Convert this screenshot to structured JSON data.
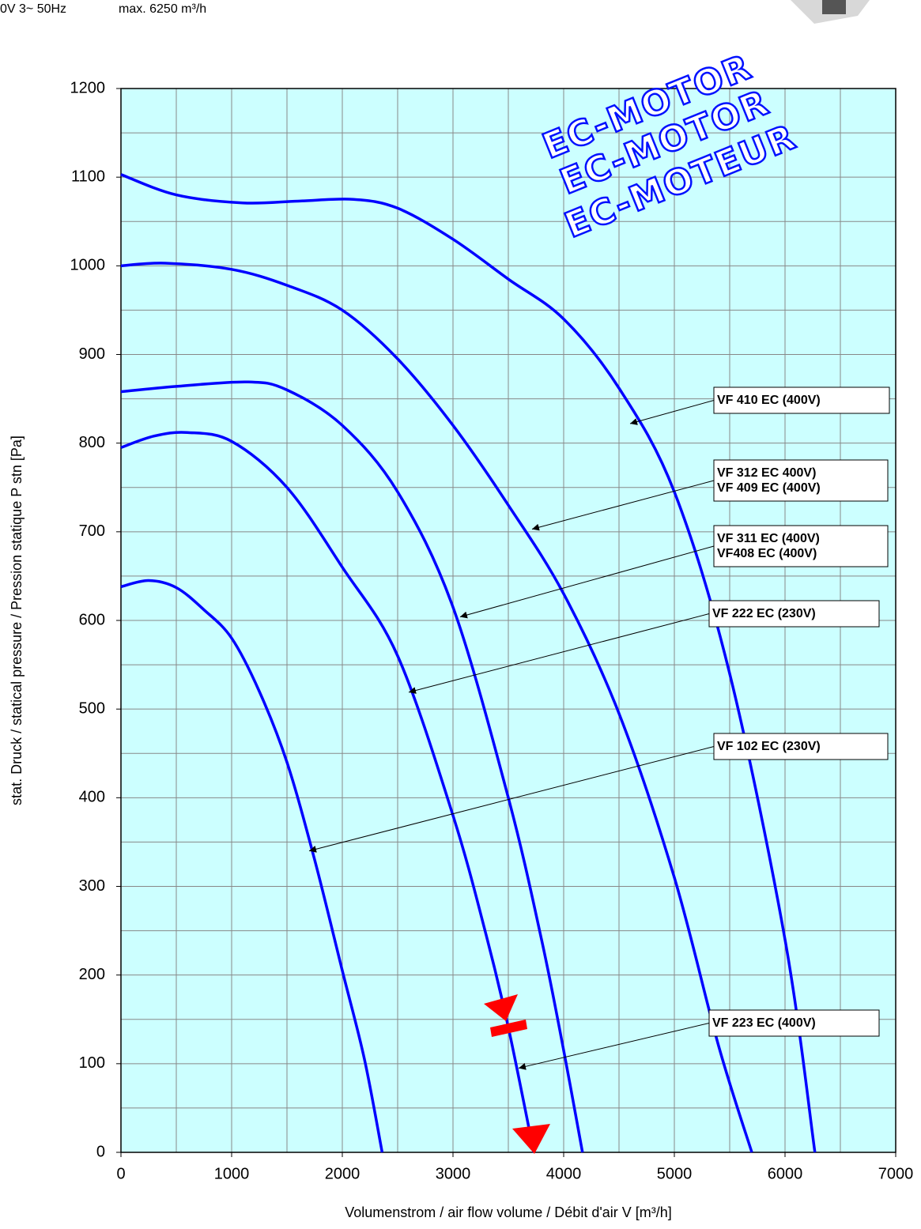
{
  "header": [
    "0V 3~ 50Hz",
    "max. 6250 m³/h"
  ],
  "watermark": [
    "EC-MOTOR",
    "EC-MOTOR",
    "EC-MOTEUR"
  ],
  "chart_data": {
    "type": "line",
    "xlabel": "Volumenstrom / air flow volume / Débit d'air V [m³/h]",
    "ylabel": "stat. Druck / statical pressure / Pression statique P stn [Pa]",
    "xlim": [
      0,
      7000
    ],
    "xticks": [
      0,
      1000,
      2000,
      3000,
      4000,
      5000,
      6000,
      7000
    ],
    "ylim": [
      0,
      1200
    ],
    "yticks": [
      0,
      100,
      200,
      300,
      400,
      500,
      600,
      700,
      800,
      900,
      1000,
      1100,
      1200
    ],
    "x_minor_grid": [
      500,
      1500,
      2500,
      3500,
      4500,
      5500,
      6500
    ],
    "y_minor_grid": [
      50,
      150,
      250,
      350,
      450,
      550,
      650,
      750,
      850,
      950,
      1050,
      1150
    ],
    "grid": true,
    "background": "#ccffff",
    "series": [
      {
        "color": "#0000ff",
        "x": [
          0,
          250,
          500,
          750,
          1000,
          1250,
          1500,
          1750,
          2000,
          2200,
          2360
        ],
        "values": [
          638,
          645,
          637,
          612,
          580,
          520,
          440,
          330,
          205,
          105,
          0
        ]
      },
      {
        "color": "#0000ff",
        "x": [
          0,
          300,
          600,
          1000,
          1500,
          2000,
          2500,
          3000,
          3300,
          3500,
          3730
        ],
        "values": [
          795,
          808,
          812,
          802,
          750,
          660,
          560,
          380,
          245,
          141,
          0
        ]
      },
      {
        "color": "#0000ff",
        "x": [
          0,
          500,
          1150,
          1500,
          2000,
          2500,
          3000,
          3500,
          3800,
          4000,
          4170
        ],
        "values": [
          858,
          864,
          869,
          860,
          820,
          745,
          615,
          400,
          240,
          115,
          0
        ]
      },
      {
        "color": "#0000ff",
        "x": [
          0,
          400,
          1000,
          1500,
          2000,
          2500,
          3000,
          3500,
          4000,
          4500,
          5000,
          5400,
          5700
        ],
        "values": [
          1000,
          1003,
          996,
          978,
          950,
          895,
          820,
          730,
          630,
          495,
          310,
          120,
          0
        ]
      },
      {
        "color": "#0000ff",
        "x": [
          0,
          500,
          1100,
          1600,
          2100,
          2500,
          3000,
          3500,
          4000,
          4500,
          5000,
          5500,
          6000,
          6270
        ],
        "values": [
          1103,
          1080,
          1071,
          1073,
          1075,
          1065,
          1030,
          985,
          940,
          862,
          745,
          540,
          240,
          0
        ]
      }
    ],
    "annotations": [
      {
        "lines": [
          "VF 410 EC (400V)"
        ],
        "x": 4600,
        "y": 822
      },
      {
        "lines": [
          "VF 312 EC 400V)",
          "VF 409 EC (400V)"
        ],
        "x": 3714,
        "y": 703
      },
      {
        "lines": [
          "VF 311 EC (400V)",
          "VF408 EC (400V)"
        ],
        "x": 3064,
        "y": 604
      },
      {
        "lines": [
          "VF 222 EC (230V)"
        ],
        "x": 2600,
        "y": 519
      },
      {
        "lines": [
          "VF 102 EC (230V)"
        ],
        "x": 1700,
        "y": 340
      },
      {
        "lines": [
          "VF 223 EC (400V)"
        ],
        "x": 3593,
        "y": 95
      }
    ]
  }
}
